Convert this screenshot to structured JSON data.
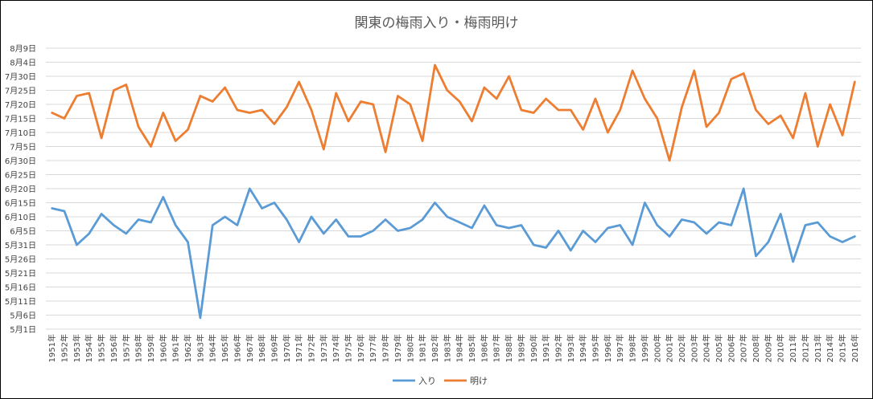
{
  "chart_data": {
    "type": "line",
    "title": "関東の梅雨入り・梅雨明け",
    "y_tick_labels": [
      "5月1日",
      "5月6日",
      "5月11日",
      "5月16日",
      "5月21日",
      "5月26日",
      "5月31日",
      "6月5日",
      "6月10日",
      "6月15日",
      "6月20日",
      "6月25日",
      "6月30日",
      "7月5日",
      "7月10日",
      "7月15日",
      "7月20日",
      "7月25日",
      "7月30日",
      "8月4日",
      "8月9日"
    ],
    "y_day_of_year_range": [
      121,
      221
    ],
    "categories": [
      "1951年",
      "1952年",
      "1953年",
      "1954年",
      "1955年",
      "1956年",
      "1957年",
      "1958年",
      "1959年",
      "1960年",
      "1961年",
      "1962年",
      "1963年",
      "1964年",
      "1965年",
      "1966年",
      "1967年",
      "1968年",
      "1969年",
      "1970年",
      "1971年",
      "1972年",
      "1973年",
      "1974年",
      "1975年",
      "1976年",
      "1977年",
      "1978年",
      "1979年",
      "1980年",
      "1981年",
      "1982年",
      "1983年",
      "1984年",
      "1985年",
      "1986年",
      "1987年",
      "1988年",
      "1989年",
      "1990年",
      "1991年",
      "1992年",
      "1993年",
      "1994年",
      "1995年",
      "1996年",
      "1997年",
      "1998年",
      "1999年",
      "2000年",
      "2001年",
      "2002年",
      "2003年",
      "2004年",
      "2005年",
      "2006年",
      "2007年",
      "2008年",
      "2009年",
      "2010年",
      "2011年",
      "2012年",
      "2013年",
      "2014年",
      "2015年",
      "2016年"
    ],
    "series": [
      {
        "name": "入り",
        "color": "#5B9BD5",
        "values": [
          "6月13日",
          "6月12日",
          "5月31日",
          "6月4日",
          "6月11日",
          "6月7日",
          "6月4日",
          "6月9日",
          "6月8日",
          "6月17日",
          "6月7日",
          "6月1日",
          "5月5日",
          "6月7日",
          "6月10日",
          "6月7日",
          "6月20日",
          "6月13日",
          "6月15日",
          "6月9日",
          "6月1日",
          "6月10日",
          "6月4日",
          "6月9日",
          "6月3日",
          "6月3日",
          "6月5日",
          "6月9日",
          "6月5日",
          "6月6日",
          "6月9日",
          "6月15日",
          "6月10日",
          "6月8日",
          "6月6日",
          "6月14日",
          "6月7日",
          "6月6日",
          "6月7日",
          "5月31日",
          "5月30日",
          "6月5日",
          "5月29日",
          "6月5日",
          "6月1日",
          "6月6日",
          "6月7日",
          "5月31日",
          "6月15日",
          "6月7日",
          "6月3日",
          "6月9日",
          "6月8日",
          "6月4日",
          "6月8日",
          "6月7日",
          "6月20日",
          "5月27日",
          "6月1日",
          "6月11日",
          "5月25日",
          "6月7日",
          "6月8日",
          "6月3日",
          "6月1日",
          "6月3日"
        ]
      },
      {
        "name": "明け",
        "color": "#ED7D31",
        "values": [
          "7月17日",
          "7月15日",
          "7月23日",
          "7月24日",
          "7月8日",
          "7月25日",
          "7月27日",
          "7月12日",
          "7月5日",
          "7月17日",
          "7月7日",
          "7月11日",
          "7月23日",
          "7月21日",
          "7月26日",
          "7月18日",
          "7月17日",
          "7月18日",
          "7月13日",
          "7月19日",
          "7月28日",
          "7月18日",
          "7月4日",
          "7月24日",
          "7月14日",
          "7月21日",
          "7月20日",
          "7月3日",
          "7月23日",
          "7月20日",
          "7月7日",
          "8月3日",
          "7月25日",
          "7月21日",
          "7月14日",
          "7月26日",
          "7月22日",
          "7月30日",
          "7月18日",
          "7月17日",
          "7月22日",
          "7月18日",
          "7月18日",
          "7月11日",
          "7月22日",
          "7月10日",
          "7月18日",
          "8月1日",
          "7月22日",
          "7月15日",
          "6月30日",
          "7月19日",
          "8月1日",
          "7月12日",
          "7月17日",
          "7月29日",
          "7月31日",
          "7月18日",
          "7月13日",
          "7月16日",
          "7月8日",
          "7月24日",
          "7月5日",
          "7月20日",
          "7月9日",
          "7月28日"
        ]
      }
    ],
    "xlabel": "",
    "ylabel": "",
    "grid": true,
    "legend_position": "bottom-center"
  }
}
